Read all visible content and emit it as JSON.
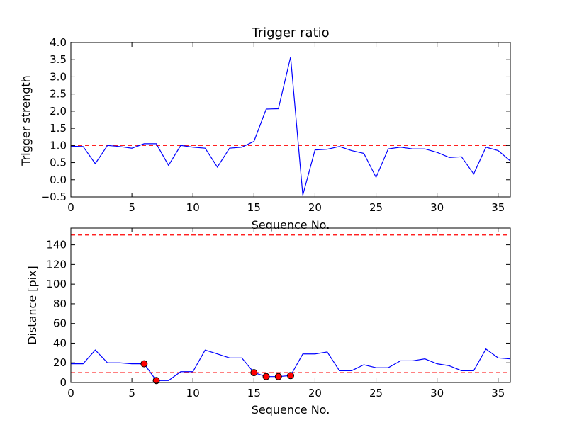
{
  "chart_data": [
    {
      "type": "line",
      "title": "Trigger ratio",
      "xlabel": "Sequence No.",
      "ylabel": "Trigger strength",
      "xlim": [
        0,
        36
      ],
      "ylim": [
        -0.5,
        4.0
      ],
      "xticks": [
        "0",
        "5",
        "10",
        "15",
        "20",
        "25",
        "30",
        "35"
      ],
      "yticks": [
        "−0.5",
        "0.0",
        "0.5",
        "1.0",
        "1.5",
        "2.0",
        "2.5",
        "3.0",
        "3.5",
        "4.0"
      ],
      "grid": false,
      "series": [
        {
          "color": "#0000ff",
          "x": [
            0,
            1,
            2,
            3,
            4,
            5,
            6,
            7,
            8,
            9,
            10,
            11,
            12,
            13,
            14,
            15,
            16,
            17,
            18,
            19,
            20,
            21,
            22,
            23,
            24,
            25,
            26,
            27,
            28,
            29,
            30,
            31,
            32,
            33,
            34,
            35,
            36
          ],
          "y": [
            0.98,
            0.97,
            0.47,
            1.0,
            0.97,
            0.92,
            1.05,
            1.05,
            0.42,
            1.0,
            0.95,
            0.92,
            0.37,
            0.92,
            0.95,
            1.12,
            2.06,
            2.07,
            3.58,
            -0.45,
            0.87,
            0.89,
            0.97,
            0.85,
            0.77,
            0.07,
            0.9,
            0.95,
            0.9,
            0.9,
            0.8,
            0.65,
            0.67,
            0.17,
            0.95,
            0.85,
            0.55
          ]
        }
      ],
      "hlines": [
        {
          "y": 1.0,
          "color": "#ff0000",
          "style": "dashed"
        }
      ]
    },
    {
      "type": "line",
      "title": "",
      "xlabel": "Sequence No.",
      "ylabel": "Distance [pix]",
      "xlim": [
        0,
        36
      ],
      "ylim": [
        0,
        157
      ],
      "xticks": [
        "0",
        "5",
        "10",
        "15",
        "20",
        "25",
        "30",
        "35"
      ],
      "yticks": [
        "0",
        "20",
        "40",
        "60",
        "80",
        "100",
        "120",
        "140"
      ],
      "grid": false,
      "series": [
        {
          "color": "#0000ff",
          "x": [
            0,
            1,
            2,
            3,
            4,
            5,
            6,
            7,
            8,
            9,
            10,
            11,
            12,
            13,
            14,
            15,
            16,
            17,
            18,
            19,
            20,
            21,
            22,
            23,
            24,
            25,
            26,
            27,
            28,
            29,
            30,
            31,
            32,
            33,
            34,
            35,
            36
          ],
          "y": [
            19,
            19,
            33,
            20,
            20,
            19,
            19,
            2,
            2,
            11,
            11,
            33,
            29,
            25,
            25,
            10,
            6,
            6,
            7,
            29,
            29,
            31,
            12,
            12,
            18,
            15,
            15,
            22,
            22,
            24,
            19,
            17,
            12,
            12,
            34,
            25,
            24
          ]
        }
      ],
      "markers": {
        "color": "#ff0000",
        "x": [
          6,
          7,
          15,
          16,
          17,
          18
        ],
        "y": [
          19,
          2,
          10,
          6,
          6,
          7
        ]
      },
      "hlines": [
        {
          "y": 150,
          "color": "#ff0000",
          "style": "dashed"
        },
        {
          "y": 10,
          "color": "#ff0000",
          "style": "dashed"
        }
      ]
    }
  ]
}
